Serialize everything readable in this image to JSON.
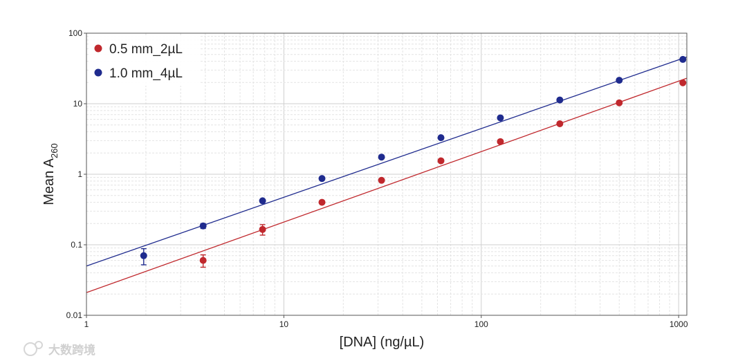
{
  "chart_data": {
    "type": "scatter",
    "title": "",
    "xlabel": "[DNA] (ng/µL)",
    "ylabel_main": "Mean A",
    "ylabel_sub": "260",
    "xscale": "log",
    "yscale": "log",
    "xlim": [
      1,
      1100
    ],
    "ylim": [
      0.01,
      100
    ],
    "x_ticks": [
      "1",
      "10",
      "100",
      "1000"
    ],
    "y_ticks": [
      "0.01",
      "0.1",
      "1",
      "10",
      "100"
    ],
    "x_tick_values": [
      1,
      10,
      100,
      1000
    ],
    "y_tick_values": [
      0.01,
      0.1,
      1,
      10,
      100
    ],
    "grid": true,
    "legend_position": "top-left",
    "series": [
      {
        "name": "0.5 mm_2µL",
        "color": "#c0282d",
        "x": [
          1.95,
          3.9,
          7.8,
          15.6,
          31.25,
          62.5,
          125,
          250,
          500,
          1050
        ],
        "y": [
          null,
          0.06,
          0.165,
          0.4,
          0.82,
          1.55,
          2.9,
          5.2,
          10.3,
          19.8
        ],
        "err": [
          null,
          0.012,
          0.028,
          0,
          0,
          0,
          0,
          0,
          0,
          0
        ],
        "fit": {
          "x": [
            1,
            1100
          ],
          "y": [
            0.021,
            23
          ]
        }
      },
      {
        "name": "1.0 mm_4µL",
        "color": "#1f2b8e",
        "x": [
          1.95,
          3.9,
          7.8,
          15.6,
          31.25,
          62.5,
          125,
          250,
          500,
          1050
        ],
        "y": [
          0.07,
          0.185,
          0.42,
          0.87,
          1.75,
          3.3,
          6.3,
          11.3,
          21.5,
          42.5
        ],
        "err": [
          0.018,
          0.015,
          0,
          0,
          0,
          0,
          0,
          0,
          0,
          0
        ],
        "fit": {
          "x": [
            1,
            1100
          ],
          "y": [
            0.05,
            46
          ]
        }
      }
    ]
  },
  "watermark": {
    "text": "大数跨境"
  }
}
